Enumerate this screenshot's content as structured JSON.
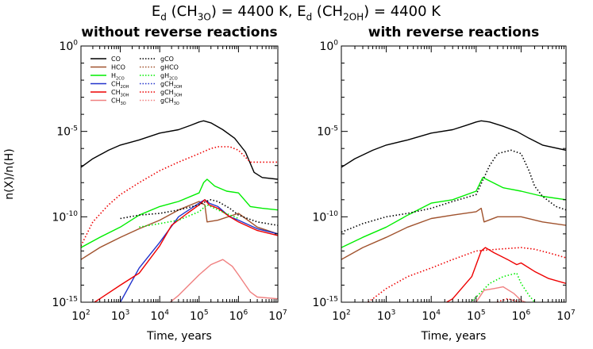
{
  "suptitle": "E_d (CH_3O) = 4400 K, E_d (CH_2OH) = 4400 K",
  "chart_data": [
    {
      "type": "line",
      "title": "without reverse reactions",
      "xlabel": "Time, years",
      "ylabel": "n(X)/n(H)",
      "x_scale": "log",
      "y_scale": "log",
      "xlim": [
        100,
        10000000
      ],
      "ylim": [
        1e-15,
        1
      ],
      "x_ticks": [
        "10^2",
        "10^3",
        "10^4",
        "10^5",
        "10^6",
        "10^7"
      ],
      "y_ticks": [
        "10^0",
        "10^-5",
        "10^-10",
        "10^-15"
      ],
      "legend_position": "top-left",
      "legend_columns": [
        [
          "CO",
          "HCO",
          "H2CO",
          "CH2OH",
          "CH3OH",
          "CH3O"
        ],
        [
          "gCO",
          "gHCO",
          "gH2CO",
          "gCH2OH",
          "gCH3OH",
          "gCH3O"
        ]
      ],
      "series": [
        {
          "name": "CO",
          "color": "#000000",
          "dash": "solid",
          "x": [
            100,
            200,
            500,
            1000,
            3000,
            10000,
            30000,
            60000,
            100000,
            130000,
            200000,
            400000,
            800000,
            1500000,
            2500000,
            4000000,
            10000000
          ],
          "y": [
            -7.1,
            -6.6,
            -6.1,
            -5.8,
            -5.5,
            -5.1,
            -4.9,
            -4.65,
            -4.45,
            -4.38,
            -4.5,
            -4.9,
            -5.4,
            -6.2,
            -7.4,
            -7.7,
            -7.8
          ]
        },
        {
          "name": "HCO",
          "color": "#a0522d",
          "dash": "solid",
          "x": [
            100,
            300,
            1000,
            3000,
            10000,
            30000,
            100000,
            140000,
            160000,
            300000,
            1000000,
            3000000,
            10000000
          ],
          "y": [
            -12.5,
            -11.8,
            -11.2,
            -10.7,
            -10.2,
            -9.6,
            -9.1,
            -9.3,
            -10.3,
            -10.2,
            -9.8,
            -10.6,
            -11.0
          ]
        },
        {
          "name": "H2CO",
          "color": "#00ee00",
          "dash": "solid",
          "x": [
            100,
            300,
            1000,
            3000,
            10000,
            30000,
            100000,
            130000,
            160000,
            250000,
            500000,
            1000000,
            2000000,
            4000000,
            10000000
          ],
          "y": [
            -11.8,
            -11.2,
            -10.6,
            -9.9,
            -9.4,
            -9.1,
            -8.6,
            -8.0,
            -7.8,
            -8.2,
            -8.5,
            -8.6,
            -9.4,
            -9.5,
            -9.6
          ]
        },
        {
          "name": "CH2OH",
          "color": "#2233cc",
          "dash": "solid",
          "x": [
            1000,
            3000,
            10000,
            30000,
            100000,
            140000,
            180000,
            300000,
            600000,
            1000000,
            3000000,
            10000000
          ],
          "y": [
            -15.0,
            -13.0,
            -11.5,
            -10.0,
            -9.2,
            -9.0,
            -9.2,
            -9.4,
            -10.0,
            -10.2,
            -10.7,
            -11.0
          ]
        },
        {
          "name": "CH3OH",
          "color": "#ee0000",
          "dash": "solid",
          "x": [
            100,
            300,
            1000,
            3000,
            10000,
            20000,
            50000,
            100000,
            140000,
            180000,
            300000,
            600000,
            1000000,
            3000000,
            10000000
          ],
          "y": [
            -15.5,
            -14.8,
            -14.0,
            -13.3,
            -11.7,
            -10.5,
            -9.8,
            -9.3,
            -9.0,
            -9.3,
            -9.5,
            -10.0,
            -10.3,
            -10.8,
            -11.1
          ]
        },
        {
          "name": "CH3O",
          "color": "#f08080",
          "dash": "solid",
          "x": [
            10000,
            30000,
            100000,
            200000,
            400000,
            700000,
            1000000,
            2000000,
            3000000,
            10000000
          ],
          "y": [
            -15.5,
            -14.6,
            -13.4,
            -12.8,
            -12.5,
            -12.9,
            -13.4,
            -14.4,
            -14.7,
            -14.8
          ]
        },
        {
          "name": "gCO",
          "color": "#000000",
          "dash": "dot",
          "x": [
            1000,
            3000,
            10000,
            30000,
            100000,
            150000,
            200000,
            300000,
            600000,
            1000000,
            3000000,
            10000000
          ],
          "y": [
            -10.1,
            -9.9,
            -9.8,
            -9.6,
            -9.3,
            -9.1,
            -9.0,
            -9.1,
            -9.5,
            -9.9,
            -10.3,
            -10.5
          ]
        },
        {
          "name": "gCH3OH",
          "color": "#ee0000",
          "dash": "dot",
          "x": [
            100,
            200,
            500,
            1000,
            3000,
            10000,
            30000,
            100000,
            200000,
            300000,
            600000,
            1000000,
            2000000,
            3000000,
            10000000
          ],
          "y": [
            -11.7,
            -10.3,
            -9.3,
            -8.7,
            -8.0,
            -7.3,
            -6.8,
            -6.3,
            -6.0,
            -5.9,
            -5.9,
            -6.1,
            -6.8,
            -6.8,
            -6.8
          ]
        },
        {
          "name": "gH2CO",
          "color": "#00ee00",
          "dash": "dot",
          "x": [
            3000,
            10000,
            30000,
            100000,
            160000,
            300000,
            1000000
          ],
          "y": [
            -10.6,
            -10.4,
            -10.2,
            -9.7,
            -9.3,
            -9.6,
            -10.1
          ]
        }
      ]
    },
    {
      "type": "line",
      "title": "with reverse reactions",
      "xlabel": "Time, years",
      "ylabel": "",
      "x_scale": "log",
      "y_scale": "log",
      "xlim": [
        100,
        10000000
      ],
      "ylim": [
        1e-15,
        1
      ],
      "x_ticks": [
        "10^2",
        "10^3",
        "10^4",
        "10^5",
        "10^6",
        "10^7"
      ],
      "y_ticks": [
        "10^0",
        "10^-5",
        "10^-10",
        "10^-15"
      ],
      "series": [
        {
          "name": "CO",
          "color": "#000000",
          "dash": "solid",
          "x": [
            100,
            200,
            500,
            1000,
            3000,
            10000,
            30000,
            60000,
            100000,
            130000,
            200000,
            400000,
            800000,
            1500000,
            3000000,
            10000000
          ],
          "y": [
            -7.1,
            -6.6,
            -6.1,
            -5.8,
            -5.5,
            -5.1,
            -4.9,
            -4.65,
            -4.45,
            -4.38,
            -4.45,
            -4.7,
            -5.0,
            -5.4,
            -5.8,
            -6.1
          ]
        },
        {
          "name": "HCO",
          "color": "#a0522d",
          "dash": "solid",
          "x": [
            100,
            300,
            1000,
            3000,
            10000,
            30000,
            100000,
            130000,
            150000,
            300000,
            1000000,
            3000000,
            10000000
          ],
          "y": [
            -12.5,
            -11.8,
            -11.2,
            -10.6,
            -10.1,
            -9.9,
            -9.7,
            -9.5,
            -10.3,
            -10.0,
            -10.0,
            -10.3,
            -10.5
          ]
        },
        {
          "name": "H2CO",
          "color": "#00ee00",
          "dash": "solid",
          "x": [
            100,
            300,
            1000,
            3000,
            10000,
            30000,
            100000,
            140000,
            200000,
            400000,
            1000000,
            3000000,
            10000000
          ],
          "y": [
            -11.8,
            -11.2,
            -10.6,
            -9.9,
            -9.2,
            -9.0,
            -8.5,
            -7.7,
            -7.9,
            -8.3,
            -8.5,
            -8.8,
            -9.0
          ]
        },
        {
          "name": "CH3OH",
          "color": "#ee0000",
          "dash": "solid",
          "x": [
            10000,
            30000,
            80000,
            130000,
            160000,
            250000,
            500000,
            800000,
            1000000,
            2000000,
            4000000,
            10000000
          ],
          "y": [
            -15.5,
            -14.8,
            -13.5,
            -12.0,
            -11.8,
            -12.1,
            -12.5,
            -12.8,
            -12.7,
            -13.2,
            -13.6,
            -13.9
          ]
        },
        {
          "name": "CH3O",
          "color": "#f08080",
          "dash": "solid",
          "x": [
            100000,
            150000,
            250000,
            400000,
            700000,
            1000000,
            2000000,
            4000000
          ],
          "y": [
            -15.0,
            -14.3,
            -14.2,
            -14.1,
            -14.5,
            -14.9,
            -15.2,
            -15.4
          ]
        },
        {
          "name": "gCO",
          "color": "#000000",
          "dash": "dot",
          "x": [
            100,
            300,
            1000,
            3000,
            10000,
            30000,
            100000,
            200000,
            300000,
            600000,
            1000000,
            1500000,
            2000000,
            3000000,
            6000000,
            10000000
          ],
          "y": [
            -10.9,
            -10.4,
            -10.0,
            -9.8,
            -9.5,
            -9.1,
            -8.7,
            -7.0,
            -6.3,
            -6.1,
            -6.3,
            -7.3,
            -8.2,
            -8.8,
            -9.4,
            -9.6
          ]
        },
        {
          "name": "gCH3OH",
          "color": "#ee0000",
          "dash": "dot",
          "x": [
            200,
            500,
            1000,
            3000,
            10000,
            30000,
            100000,
            300000,
            1000000,
            2000000,
            4000000,
            10000000
          ],
          "y": [
            -15.5,
            -14.8,
            -14.2,
            -13.5,
            -13.0,
            -12.5,
            -12.0,
            -11.9,
            -11.8,
            -11.9,
            -12.1,
            -12.4
          ]
        },
        {
          "name": "gH2CO",
          "color": "#00ee00",
          "dash": "dot",
          "x": [
            30000,
            60000,
            100000,
            200000,
            400000,
            800000,
            1000000,
            1500000,
            2500000
          ],
          "y": [
            -15.5,
            -15.2,
            -14.7,
            -13.9,
            -13.5,
            -13.3,
            -13.9,
            -14.6,
            -15.3
          ]
        },
        {
          "name": "gCH3O",
          "color": "#ee0000",
          "dash": "dot",
          "x": [
            100000,
            200000,
            500000,
            1000000,
            2000000
          ],
          "y": [
            -15.4,
            -15.1,
            -14.8,
            -15.0,
            -15.4
          ]
        }
      ]
    }
  ]
}
